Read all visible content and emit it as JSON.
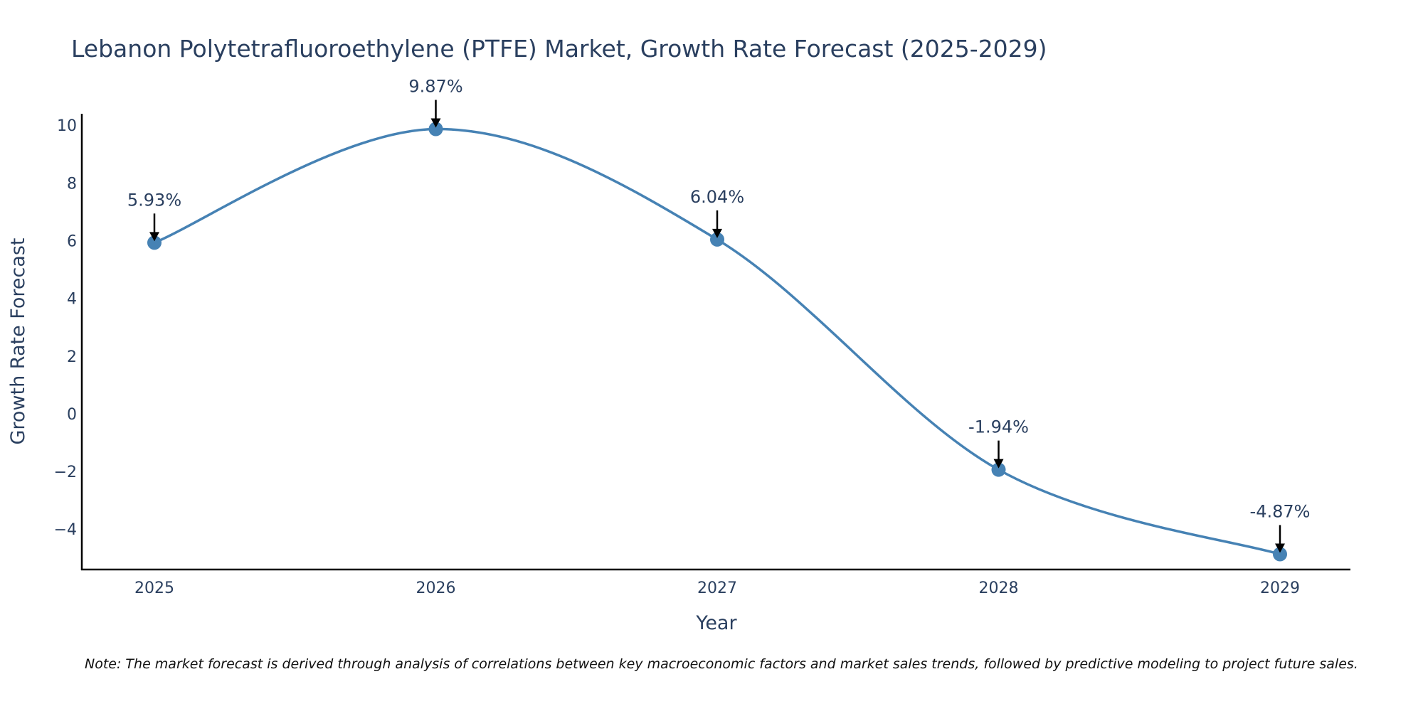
{
  "chart_data": {
    "type": "line",
    "title": "Lebanon Polytetrafluoroethylene (PTFE) Market, Growth Rate Forecast (2025-2029)",
    "xlabel": "Year",
    "ylabel": "Growth Rate Forecast",
    "categories": [
      "2025",
      "2026",
      "2027",
      "2028",
      "2029"
    ],
    "values": [
      5.93,
      9.87,
      6.04,
      -1.94,
      -4.87
    ],
    "data_labels": [
      "5.93%",
      "9.87%",
      "6.04%",
      "-1.94%",
      "-4.87%"
    ],
    "y_ticks": [
      -4,
      -2,
      0,
      2,
      4,
      6,
      8,
      10
    ],
    "y_tick_labels": [
      "−4",
      "−2",
      "0",
      "2",
      "4",
      "6",
      "8",
      "10"
    ],
    "ylim": [
      -5.4,
      10.4
    ],
    "grid": false,
    "line_shape": "spline",
    "colors": {
      "line": "#4682b4",
      "marker": "#4682b4",
      "arrow": "#000000",
      "text": "#2a3f5f"
    }
  },
  "note": "Note: The market forecast is derived through analysis of correlations between key macroeconomic factors and market sales trends, followed by predictive modeling to project future sales."
}
